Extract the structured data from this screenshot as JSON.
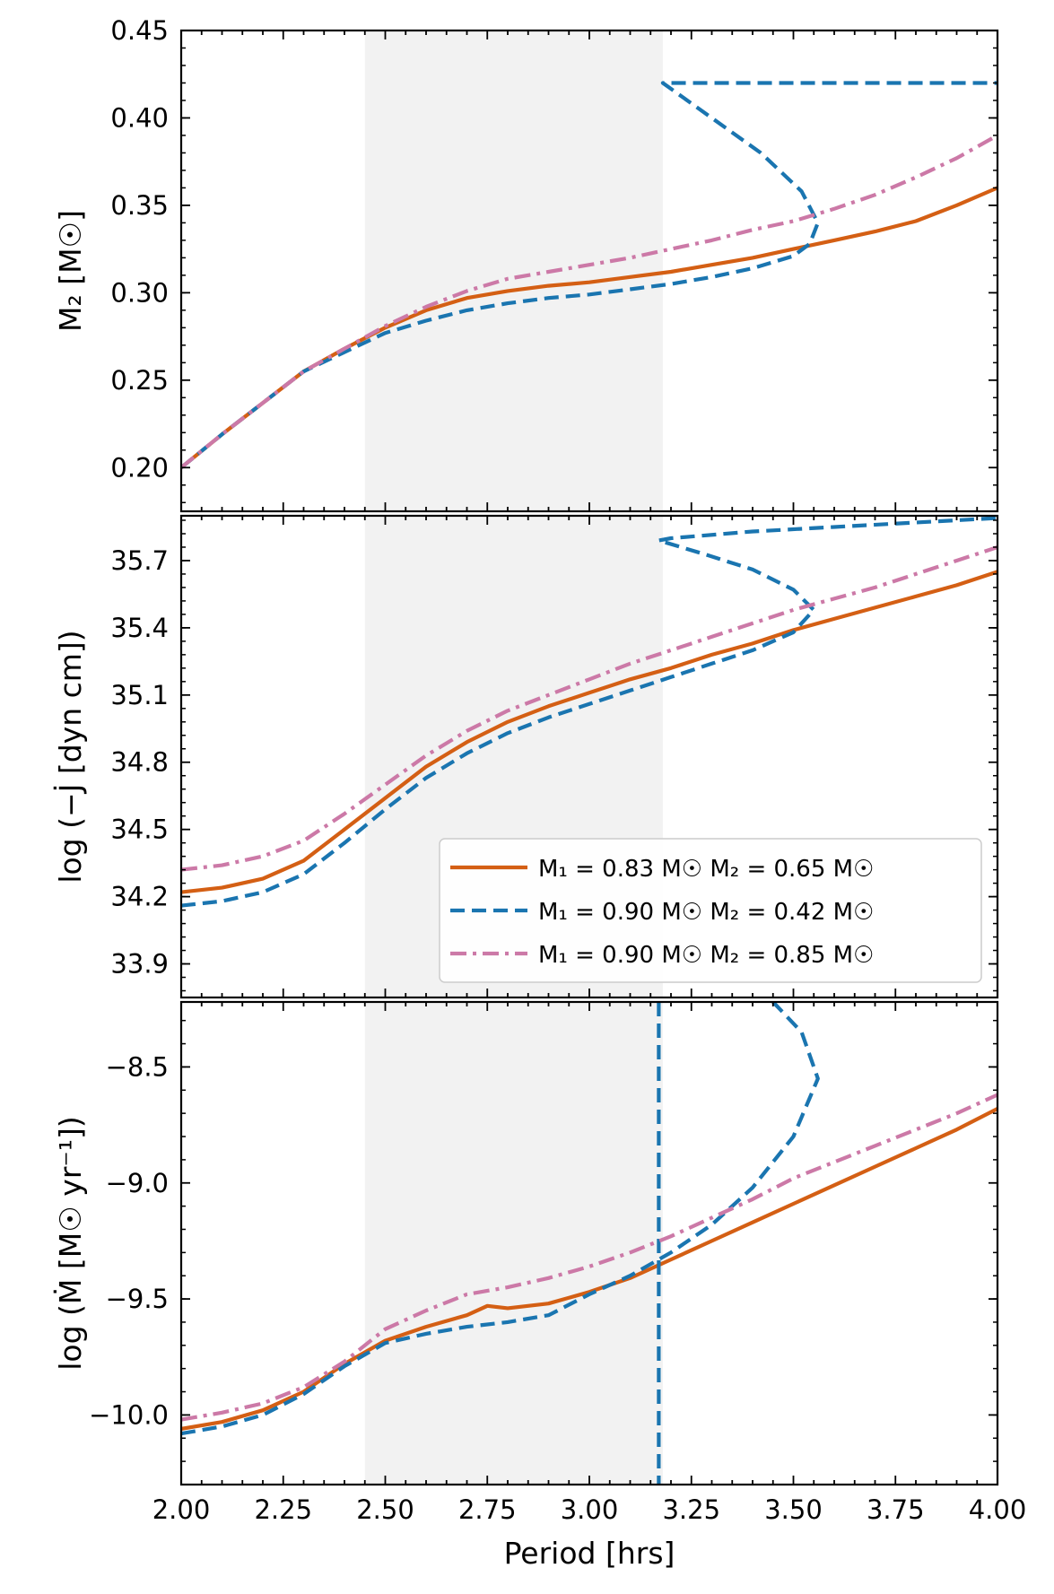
{
  "chart_data": [
    {
      "type": "line",
      "panel": "top",
      "ylabel": "M₂ [M☉]",
      "xlim": [
        2.0,
        4.0
      ],
      "ylim": [
        0.175,
        0.45
      ],
      "yticks": [
        0.2,
        0.25,
        0.3,
        0.35,
        0.4,
        0.45
      ],
      "ytick_labels": [
        "0.20",
        "0.25",
        "0.30",
        "0.35",
        "0.40",
        "0.45"
      ],
      "shaded_x_range": [
        2.45,
        3.18
      ],
      "series": [
        {
          "name": "M₁ = 0.83 M☉ M₂ = 0.65 M☉",
          "color": "#d45f14",
          "style": "solid",
          "points": [
            [
              2.0,
              0.2
            ],
            [
              2.1,
              0.219
            ],
            [
              2.2,
              0.237
            ],
            [
              2.3,
              0.255
            ],
            [
              2.4,
              0.268
            ],
            [
              2.5,
              0.28
            ],
            [
              2.6,
              0.29
            ],
            [
              2.7,
              0.297
            ],
            [
              2.8,
              0.301
            ],
            [
              2.9,
              0.304
            ],
            [
              3.0,
              0.306
            ],
            [
              3.1,
              0.309
            ],
            [
              3.2,
              0.312
            ],
            [
              3.3,
              0.316
            ],
            [
              3.4,
              0.32
            ],
            [
              3.5,
              0.325
            ],
            [
              3.6,
              0.33
            ],
            [
              3.7,
              0.335
            ],
            [
              3.8,
              0.341
            ],
            [
              3.9,
              0.35
            ],
            [
              4.0,
              0.36
            ]
          ]
        },
        {
          "name": "M₁ = 0.90 M☉ M₂ = 0.42 M☉",
          "color": "#1a75b0",
          "style": "dashed",
          "points": [
            [
              2.0,
              0.2
            ],
            [
              2.1,
              0.219
            ],
            [
              2.2,
              0.237
            ],
            [
              2.3,
              0.255
            ],
            [
              2.4,
              0.266
            ],
            [
              2.5,
              0.277
            ],
            [
              2.6,
              0.284
            ],
            [
              2.7,
              0.29
            ],
            [
              2.8,
              0.294
            ],
            [
              2.9,
              0.297
            ],
            [
              3.0,
              0.299
            ],
            [
              3.1,
              0.302
            ],
            [
              3.2,
              0.305
            ],
            [
              3.3,
              0.309
            ],
            [
              3.4,
              0.314
            ],
            [
              3.5,
              0.321
            ],
            [
              3.54,
              0.328
            ],
            [
              3.56,
              0.34
            ],
            [
              3.52,
              0.358
            ],
            [
              3.42,
              0.38
            ],
            [
              3.3,
              0.4
            ],
            [
              3.18,
              0.42
            ],
            [
              3.5,
              0.42
            ],
            [
              4.0,
              0.42
            ]
          ]
        },
        {
          "name": "M₁ = 0.90 M☉ M₂ = 0.85 M☉",
          "color": "#cc79a7",
          "style": "dashdot",
          "points": [
            [
              2.0,
              0.2
            ],
            [
              2.1,
              0.219
            ],
            [
              2.2,
              0.237
            ],
            [
              2.3,
              0.255
            ],
            [
              2.4,
              0.268
            ],
            [
              2.5,
              0.281
            ],
            [
              2.6,
              0.292
            ],
            [
              2.7,
              0.301
            ],
            [
              2.8,
              0.308
            ],
            [
              2.9,
              0.312
            ],
            [
              3.0,
              0.316
            ],
            [
              3.1,
              0.32
            ],
            [
              3.2,
              0.325
            ],
            [
              3.3,
              0.33
            ],
            [
              3.4,
              0.336
            ],
            [
              3.5,
              0.341
            ],
            [
              3.6,
              0.348
            ],
            [
              3.7,
              0.356
            ],
            [
              3.8,
              0.366
            ],
            [
              3.9,
              0.377
            ],
            [
              4.0,
              0.39
            ]
          ]
        }
      ]
    },
    {
      "type": "line",
      "panel": "middle",
      "ylabel": "log (−J̇ [dyn cm])",
      "xlim": [
        2.0,
        4.0
      ],
      "ylim": [
        33.75,
        35.9
      ],
      "yticks": [
        33.9,
        34.2,
        34.5,
        34.8,
        35.1,
        35.4,
        35.7
      ],
      "ytick_labels": [
        "33.9",
        "34.2",
        "34.5",
        "34.8",
        "35.1",
        "35.4",
        "35.7"
      ],
      "shaded_x_range": [
        2.45,
        3.18
      ],
      "series": [
        {
          "name": "M₁ = 0.83 M☉ M₂ = 0.65 M☉",
          "color": "#d45f14",
          "style": "solid",
          "points": [
            [
              2.0,
              34.22
            ],
            [
              2.1,
              34.24
            ],
            [
              2.2,
              34.28
            ],
            [
              2.3,
              34.36
            ],
            [
              2.4,
              34.5
            ],
            [
              2.5,
              34.64
            ],
            [
              2.6,
              34.78
            ],
            [
              2.7,
              34.89
            ],
            [
              2.8,
              34.98
            ],
            [
              2.9,
              35.05
            ],
            [
              3.0,
              35.11
            ],
            [
              3.1,
              35.17
            ],
            [
              3.2,
              35.22
            ],
            [
              3.3,
              35.28
            ],
            [
              3.4,
              35.33
            ],
            [
              3.5,
              35.39
            ],
            [
              3.6,
              35.44
            ],
            [
              3.7,
              35.49
            ],
            [
              3.8,
              35.54
            ],
            [
              3.9,
              35.59
            ],
            [
              4.0,
              35.65
            ]
          ]
        },
        {
          "name": "M₁ = 0.90 M☉ M₂ = 0.42 M☉",
          "color": "#1a75b0",
          "style": "dashed",
          "points": [
            [
              2.0,
              34.16
            ],
            [
              2.1,
              34.18
            ],
            [
              2.2,
              34.22
            ],
            [
              2.3,
              34.3
            ],
            [
              2.4,
              34.44
            ],
            [
              2.5,
              34.59
            ],
            [
              2.6,
              34.73
            ],
            [
              2.7,
              34.84
            ],
            [
              2.8,
              34.93
            ],
            [
              2.9,
              35.0
            ],
            [
              3.0,
              35.06
            ],
            [
              3.1,
              35.12
            ],
            [
              3.2,
              35.18
            ],
            [
              3.3,
              35.24
            ],
            [
              3.4,
              35.3
            ],
            [
              3.5,
              35.38
            ],
            [
              3.55,
              35.48
            ],
            [
              3.5,
              35.57
            ],
            [
              3.4,
              35.66
            ],
            [
              3.28,
              35.73
            ],
            [
              3.17,
              35.79
            ],
            [
              3.2,
              35.8
            ],
            [
              3.4,
              35.83
            ],
            [
              3.6,
              35.85
            ],
            [
              3.8,
              35.87
            ],
            [
              4.0,
              35.89
            ]
          ]
        },
        {
          "name": "M₁ = 0.90 M☉ M₂ = 0.85 M☉",
          "color": "#cc79a7",
          "style": "dashdot",
          "points": [
            [
              2.0,
              34.32
            ],
            [
              2.1,
              34.34
            ],
            [
              2.2,
              34.38
            ],
            [
              2.3,
              34.45
            ],
            [
              2.4,
              34.57
            ],
            [
              2.5,
              34.7
            ],
            [
              2.6,
              34.83
            ],
            [
              2.7,
              34.94
            ],
            [
              2.8,
              35.03
            ],
            [
              2.9,
              35.1
            ],
            [
              3.0,
              35.17
            ],
            [
              3.1,
              35.24
            ],
            [
              3.2,
              35.3
            ],
            [
              3.3,
              35.36
            ],
            [
              3.4,
              35.42
            ],
            [
              3.5,
              35.48
            ],
            [
              3.6,
              35.53
            ],
            [
              3.7,
              35.58
            ],
            [
              3.8,
              35.64
            ],
            [
              3.9,
              35.7
            ],
            [
              4.0,
              35.76
            ]
          ]
        }
      ]
    },
    {
      "type": "line",
      "panel": "bottom",
      "ylabel": "log (Ṁ [M☉ yr⁻¹])",
      "xlabel": "Period [hrs]",
      "xlim": [
        2.0,
        4.0
      ],
      "ylim": [
        -10.3,
        -8.22
      ],
      "yticks": [
        -10.0,
        -9.5,
        -9.0,
        -8.5
      ],
      "ytick_labels": [
        "−10.0",
        "−9.5",
        "−9.0",
        "−8.5"
      ],
      "xticks": [
        2.0,
        2.25,
        2.5,
        2.75,
        3.0,
        3.25,
        3.5,
        3.75,
        4.0
      ],
      "xtick_labels": [
        "2.00",
        "2.25",
        "2.50",
        "2.75",
        "3.00",
        "3.25",
        "3.50",
        "3.75",
        "4.00"
      ],
      "shaded_x_range": [
        2.45,
        3.18
      ],
      "series": [
        {
          "name": "M₁ = 0.83 M☉ M₂ = 0.65 M☉",
          "color": "#d45f14",
          "style": "solid",
          "points": [
            [
              2.0,
              -10.06
            ],
            [
              2.1,
              -10.03
            ],
            [
              2.2,
              -9.98
            ],
            [
              2.3,
              -9.9
            ],
            [
              2.4,
              -9.78
            ],
            [
              2.5,
              -9.68
            ],
            [
              2.6,
              -9.62
            ],
            [
              2.7,
              -9.57
            ],
            [
              2.75,
              -9.53
            ],
            [
              2.8,
              -9.54
            ],
            [
              2.9,
              -9.52
            ],
            [
              3.0,
              -9.47
            ],
            [
              3.1,
              -9.41
            ],
            [
              3.2,
              -9.33
            ],
            [
              3.3,
              -9.25
            ],
            [
              3.4,
              -9.17
            ],
            [
              3.5,
              -9.09
            ],
            [
              3.6,
              -9.01
            ],
            [
              3.7,
              -8.93
            ],
            [
              3.8,
              -8.85
            ],
            [
              3.9,
              -8.77
            ],
            [
              4.0,
              -8.68
            ]
          ]
        },
        {
          "name": "M₁ = 0.90 M☉ M₂ = 0.42 M☉",
          "color": "#1a75b0",
          "style": "dashed",
          "points": [
            [
              2.0,
              -10.08
            ],
            [
              2.1,
              -10.05
            ],
            [
              2.2,
              -10.0
            ],
            [
              2.3,
              -9.91
            ],
            [
              2.4,
              -9.79
            ],
            [
              2.5,
              -9.69
            ],
            [
              2.6,
              -9.65
            ],
            [
              2.7,
              -9.62
            ],
            [
              2.8,
              -9.6
            ],
            [
              2.9,
              -9.57
            ],
            [
              3.0,
              -9.48
            ],
            [
              3.1,
              -9.4
            ],
            [
              3.2,
              -9.3
            ],
            [
              3.3,
              -9.18
            ],
            [
              3.4,
              -9.02
            ],
            [
              3.5,
              -8.8
            ],
            [
              3.56,
              -8.55
            ],
            [
              3.52,
              -8.35
            ],
            [
              3.45,
              -8.22
            ]
          ]
        },
        {
          "name": "M₁ = 0.90 M☉ M₂ = 0.42 M☉ (vertical)",
          "color": "#1a75b0",
          "style": "dashed",
          "points": [
            [
              3.17,
              -8.22
            ],
            [
              3.17,
              -10.3
            ]
          ]
        },
        {
          "name": "M₁ = 0.90 M☉ M₂ = 0.85 M☉",
          "color": "#cc79a7",
          "style": "dashdot",
          "points": [
            [
              2.0,
              -10.02
            ],
            [
              2.1,
              -9.99
            ],
            [
              2.2,
              -9.95
            ],
            [
              2.3,
              -9.88
            ],
            [
              2.4,
              -9.77
            ],
            [
              2.5,
              -9.63
            ],
            [
              2.6,
              -9.55
            ],
            [
              2.7,
              -9.48
            ],
            [
              2.8,
              -9.45
            ],
            [
              2.9,
              -9.41
            ],
            [
              3.0,
              -9.36
            ],
            [
              3.1,
              -9.3
            ],
            [
              3.2,
              -9.23
            ],
            [
              3.3,
              -9.15
            ],
            [
              3.4,
              -9.07
            ],
            [
              3.5,
              -8.98
            ],
            [
              3.6,
              -8.91
            ],
            [
              3.7,
              -8.84
            ],
            [
              3.8,
              -8.77
            ],
            [
              3.9,
              -8.7
            ],
            [
              4.0,
              -8.62
            ]
          ]
        }
      ]
    }
  ],
  "legend": {
    "placement": "middle-panel lower-right",
    "entries": [
      {
        "label": "M₁ = 0.83 M☉ M₂ = 0.65 M☉",
        "color": "#d45f14",
        "style": "solid"
      },
      {
        "label": "M₁ = 0.90 M☉ M₂ = 0.42 M☉",
        "color": "#1a75b0",
        "style": "dashed"
      },
      {
        "label": "M₁ = 0.90 M☉ M₂ = 0.85 M☉",
        "color": "#cc79a7",
        "style": "dashdot"
      }
    ]
  }
}
